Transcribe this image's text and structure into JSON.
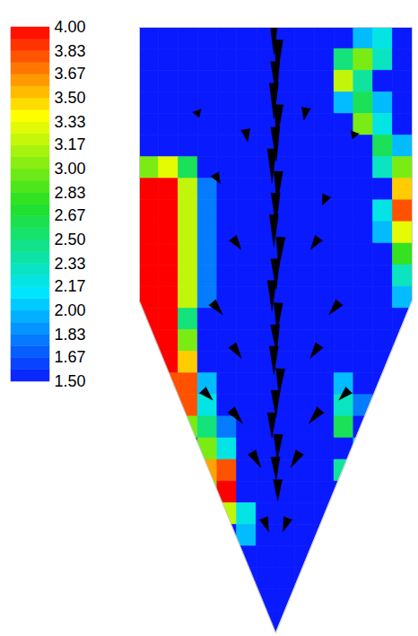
{
  "chart_data": {
    "type": "heatmap",
    "tick_labels": false,
    "cells": [
      [
        1.5,
        1.5,
        1.5,
        1.5,
        1.5,
        1.5,
        1.5,
        1.5,
        1.5,
        1.5,
        1.5,
        2.0,
        2.2,
        1.5
      ],
      [
        1.5,
        1.5,
        1.5,
        1.5,
        1.5,
        1.5,
        1.5,
        1.5,
        1.5,
        1.5,
        2.5,
        3.0,
        2.3,
        1.5
      ],
      [
        1.5,
        1.5,
        1.5,
        1.5,
        1.5,
        1.5,
        1.5,
        1.5,
        1.5,
        1.5,
        3.2,
        2.4,
        1.5,
        1.5
      ],
      [
        1.5,
        1.5,
        1.5,
        1.5,
        1.5,
        1.5,
        1.5,
        1.5,
        1.5,
        1.5,
        2.0,
        2.6,
        2.0,
        1.5
      ],
      [
        1.5,
        1.5,
        1.5,
        1.5,
        1.5,
        1.5,
        1.5,
        1.5,
        1.5,
        1.5,
        1.5,
        3.0,
        2.2,
        1.5
      ],
      [
        1.5,
        1.5,
        1.5,
        1.5,
        1.5,
        1.5,
        1.5,
        1.5,
        1.5,
        1.5,
        1.5,
        1.5,
        2.6,
        2.0
      ],
      [
        3.0,
        3.3,
        2.6,
        1.5,
        1.5,
        1.5,
        1.5,
        1.5,
        1.5,
        1.5,
        1.5,
        1.5,
        2.3,
        3.0
      ],
      [
        4.0,
        4.0,
        3.2,
        1.8,
        1.5,
        1.5,
        1.5,
        1.5,
        1.5,
        1.5,
        1.5,
        1.5,
        1.5,
        3.5
      ],
      [
        4.0,
        4.0,
        3.2,
        1.8,
        1.5,
        1.5,
        1.5,
        1.5,
        1.5,
        1.5,
        1.5,
        1.5,
        2.2,
        3.8
      ],
      [
        4.0,
        4.0,
        3.2,
        1.8,
        1.5,
        1.5,
        1.5,
        1.5,
        1.5,
        1.5,
        1.5,
        1.5,
        2.0,
        3.3
      ],
      [
        4.0,
        4.0,
        3.2,
        1.8,
        1.5,
        1.5,
        1.5,
        1.5,
        1.5,
        1.5,
        1.5,
        1.5,
        1.5,
        2.8
      ],
      [
        4.0,
        4.0,
        3.2,
        1.8,
        1.5,
        1.5,
        1.5,
        1.5,
        1.5,
        1.5,
        1.5,
        1.5,
        1.5,
        2.3
      ],
      [
        4.0,
        4.0,
        3.2,
        1.8,
        1.5,
        1.5,
        1.5,
        1.5,
        1.5,
        1.5,
        1.5,
        1.5,
        1.5,
        2.0
      ],
      [
        4.0,
        4.0,
        2.5,
        1.5,
        1.5,
        1.5,
        1.5,
        1.5,
        1.5,
        1.5,
        1.5,
        1.5,
        1.5,
        1.5
      ],
      [
        4.0,
        4.0,
        3.0,
        1.5,
        1.5,
        1.5,
        1.5,
        1.5,
        1.5,
        1.5,
        1.5,
        1.5,
        1.5,
        1.5
      ],
      [
        1.5,
        4.0,
        3.5,
        1.5,
        1.5,
        1.5,
        1.5,
        1.5,
        1.5,
        1.5,
        1.5,
        1.5,
        1.5,
        1.5
      ],
      [
        1.5,
        3.8,
        3.8,
        2.0,
        1.5,
        1.5,
        1.5,
        1.5,
        1.5,
        1.5,
        2.0,
        1.5,
        1.5,
        1.5
      ],
      [
        1.5,
        1.5,
        3.8,
        2.2,
        1.5,
        1.5,
        1.5,
        1.5,
        1.5,
        1.5,
        2.3,
        1.8,
        1.5,
        1.5
      ],
      [
        1.5,
        1.5,
        3.0,
        2.5,
        1.8,
        1.5,
        1.5,
        1.5,
        1.5,
        1.5,
        2.6,
        1.5,
        1.5,
        1.5
      ],
      [
        1.5,
        1.5,
        1.5,
        3.0,
        2.2,
        1.5,
        1.5,
        1.5,
        1.5,
        1.5,
        1.5,
        2.0,
        1.5,
        1.5
      ],
      [
        1.5,
        1.5,
        1.5,
        3.6,
        3.8,
        1.5,
        1.5,
        1.5,
        1.5,
        1.5,
        2.4,
        1.5,
        1.5,
        1.5
      ],
      [
        1.5,
        1.5,
        1.5,
        3.0,
        4.0,
        1.5,
        1.5,
        1.5,
        1.5,
        1.5,
        1.5,
        1.5,
        1.5,
        1.5
      ],
      [
        1.5,
        1.5,
        1.5,
        1.5,
        3.2,
        2.2,
        1.5,
        1.5,
        1.5,
        1.5,
        1.5,
        1.5,
        1.5,
        1.5
      ],
      [
        1.5,
        1.5,
        1.5,
        1.5,
        1.5,
        2.0,
        1.5,
        1.5,
        1.5,
        1.5,
        1.5,
        1.5,
        1.5,
        1.5
      ],
      [
        1.5,
        1.5,
        1.5,
        1.5,
        1.5,
        1.5,
        1.5,
        1.5,
        1.5,
        1.5,
        1.5,
        1.5,
        1.5,
        1.5
      ],
      [
        1.5,
        1.5,
        1.5,
        1.5,
        1.5,
        1.5,
        1.5,
        1.5,
        1.5,
        1.5,
        1.5,
        1.5,
        1.5,
        1.5
      ],
      [
        1.5,
        1.5,
        1.5,
        1.5,
        1.5,
        1.5,
        1.5,
        1.5,
        1.5,
        1.5,
        1.5,
        1.5,
        1.5,
        1.5
      ],
      [
        1.5,
        1.5,
        1.5,
        1.5,
        1.5,
        1.5,
        1.5,
        1.5,
        1.5,
        1.5,
        1.5,
        1.5,
        1.5,
        1.5
      ]
    ],
    "colorbar": {
      "range": [
        1.5,
        4
      ],
      "ticks": [
        {
          "value": 4,
          "label": "4.00"
        },
        {
          "value": 3.83,
          "label": "3.83"
        },
        {
          "value": 3.67,
          "label": "3.67"
        },
        {
          "value": 3.5,
          "label": "3.50"
        },
        {
          "value": 3.33,
          "label": "3.33"
        },
        {
          "value": 3.17,
          "label": "3.17"
        },
        {
          "value": 3,
          "label": "3.00"
        },
        {
          "value": 2.83,
          "label": "2.83"
        },
        {
          "value": 2.67,
          "label": "2.67"
        },
        {
          "value": 2.5,
          "label": "2.50"
        },
        {
          "value": 2.33,
          "label": "2.33"
        },
        {
          "value": 2.17,
          "label": "2.17"
        },
        {
          "value": 2,
          "label": "2.00"
        },
        {
          "value": 1.83,
          "label": "1.83"
        },
        {
          "value": 1.67,
          "label": "1.67"
        },
        {
          "value": 1.5,
          "label": "1.50"
        }
      ]
    },
    "vectors": {
      "x": [
        6.9,
        7.1,
        7.0,
        6.9,
        7.1,
        7.0,
        6.8,
        7.1,
        7.0,
        6.9,
        7.2,
        7.0,
        6.8,
        7.1,
        7.0,
        6.9,
        7.2,
        7.0,
        6.8,
        7.1,
        7.0,
        7.1,
        3,
        11,
        4,
        9.5,
        8.5,
        5.5,
        5,
        9,
        4,
        10,
        5,
        9,
        3.5,
        10.5,
        5,
        9,
        6,
        8,
        6.5,
        7.5
      ],
      "y": [
        0.4,
        1.4,
        2.4,
        3.4,
        4.4,
        5.4,
        6.4,
        7.4,
        8.4,
        9.4,
        10.4,
        11.4,
        12.4,
        13.4,
        14.4,
        15.4,
        16.4,
        17.4,
        18.4,
        19.4,
        20.4,
        21.4,
        4,
        5,
        7,
        8,
        4,
        5,
        10,
        10,
        13,
        13,
        15,
        15,
        17,
        17,
        18,
        18,
        20,
        20,
        23,
        23
      ],
      "magnitude": [
        1,
        1,
        1,
        1,
        1,
        0.95,
        0.95,
        0.9,
        0.9,
        0.9,
        0.85,
        0.85,
        0.85,
        0.8,
        0.8,
        0.8,
        0.75,
        0.75,
        0.7,
        0.7,
        0.65,
        0.6,
        0.2,
        0.2,
        0.3,
        0.3,
        0.35,
        0.35,
        0.4,
        0.4,
        0.45,
        0.45,
        0.45,
        0.45,
        0.4,
        0.4,
        0.5,
        0.5,
        0.5,
        0.5,
        0.4,
        0.4
      ],
      "direction": [
        180,
        182,
        178,
        180,
        183,
        178,
        180,
        182,
        179,
        180,
        184,
        178,
        180,
        182,
        177,
        180,
        183,
        179,
        180,
        182,
        178,
        180,
        160,
        200,
        150,
        205,
        190,
        170,
        145,
        215,
        140,
        220,
        145,
        215,
        135,
        225,
        140,
        220,
        150,
        210,
        160,
        200
      ]
    }
  }
}
